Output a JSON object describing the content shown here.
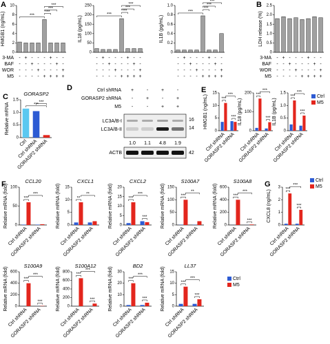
{
  "chart_data": [
    {
      "type": "bar",
      "panel": "A",
      "ylabel": "HMGB1 (ng/mL)",
      "values": [
        2.2,
        2,
        2,
        2,
        7,
        2,
        2,
        2
      ],
      "color": "#a0a0a0",
      "ylim": [
        0,
        10
      ],
      "yticks": [
        0,
        2,
        4,
        6,
        8,
        10
      ],
      "annotations": [
        "***",
        "***",
        "***",
        "***"
      ],
      "conditions": [
        {
          "name": "3-MA",
          "signs": [
            "-",
            "+",
            "-",
            "-",
            "-",
            "+",
            "-",
            "-"
          ]
        },
        {
          "name": "BAF",
          "signs": [
            "-",
            "-",
            "+",
            "-",
            "-",
            "-",
            "+",
            "-"
          ]
        },
        {
          "name": "WOR",
          "signs": [
            "-",
            "-",
            "-",
            "+",
            "-",
            "-",
            "-",
            "+"
          ]
        },
        {
          "name": "M5",
          "signs": [
            "-",
            "-",
            "-",
            "-",
            "+",
            "+",
            "+",
            "+"
          ]
        }
      ]
    },
    {
      "type": "bar",
      "ylabel": "IL18 (pg/mL)",
      "values": [
        20,
        15,
        15,
        15,
        180,
        20,
        20,
        20
      ],
      "color": "#a0a0a0",
      "ylim": [
        0,
        250
      ],
      "yticks": [
        0,
        50,
        100,
        150,
        200,
        250
      ],
      "annotations": [
        "***",
        "***",
        "***",
        "***"
      ],
      "conditions": [
        {
          "signs": [
            "-",
            "+",
            "-",
            "-",
            "-",
            "+",
            "-",
            "-"
          ]
        },
        {
          "signs": [
            "-",
            "-",
            "+",
            "-",
            "-",
            "-",
            "+",
            "-"
          ]
        },
        {
          "signs": [
            "-",
            "-",
            "-",
            "+",
            "-",
            "-",
            "-",
            "+"
          ]
        },
        {
          "signs": [
            "-",
            "-",
            "-",
            "-",
            "+",
            "+",
            "+",
            "+"
          ]
        }
      ]
    },
    {
      "type": "bar",
      "ylabel": "IL1B (pg/mL)",
      "values": [
        0.05,
        0.05,
        0.05,
        0.05,
        0.78,
        0.05,
        0.05,
        0.4
      ],
      "color": "#a0a0a0",
      "ylim": [
        0,
        1
      ],
      "yticks": [
        0,
        0.2,
        0.4,
        0.6,
        0.8,
        {
          "value": 1,
          "label": "1.0"
        }
      ],
      "annotations": [
        "***",
        "***",
        "***",
        "***"
      ],
      "conditions": [
        {
          "signs": [
            "-",
            "+",
            "-",
            "-",
            "-",
            "+",
            "-",
            "-"
          ]
        },
        {
          "signs": [
            "-",
            "-",
            "+",
            "-",
            "-",
            "-",
            "+",
            "-"
          ]
        },
        {
          "signs": [
            "-",
            "-",
            "-",
            "+",
            "-",
            "-",
            "-",
            "+"
          ]
        },
        {
          "signs": [
            "-",
            "-",
            "-",
            "-",
            "+",
            "+",
            "+",
            "+"
          ]
        }
      ]
    },
    {
      "type": "bar",
      "panel": "B",
      "ylabel": "LDH release (%)",
      "values": [
        1.8,
        1.9,
        1.8,
        1.85,
        1.75,
        1.8,
        1.9,
        1.85
      ],
      "color": "#a0a0a0",
      "ylim": [
        0,
        2.5
      ],
      "yticks": [
        0,
        0.5,
        {
          "value": 1,
          "label": "1.0"
        },
        1.5,
        {
          "value": 2,
          "label": "2.0"
        },
        2.5
      ],
      "conditions": [
        {
          "name": "3-MA",
          "signs": [
            "-",
            "+",
            "-",
            "-",
            "-",
            "+",
            "-",
            "-"
          ]
        },
        {
          "name": "BAF",
          "signs": [
            "-",
            "-",
            "+",
            "-",
            "-",
            "-",
            "+",
            "-"
          ]
        },
        {
          "name": "WOR",
          "signs": [
            "-",
            "-",
            "-",
            "+",
            "-",
            "-",
            "-",
            "+"
          ]
        },
        {
          "name": "M5",
          "signs": [
            "-",
            "-",
            "-",
            "-",
            "+",
            "+",
            "+",
            "+"
          ]
        }
      ]
    },
    {
      "type": "bar",
      "panel": "C",
      "title": "GORASP2",
      "ylabel": "Relative mRNA",
      "categories": [
        "Ctrl",
        "Ctrl shRNA",
        "GORASP2 shRNA"
      ],
      "values": [
        1.15,
        1.05,
        0.1
      ],
      "colors": [
        "#5bc8f0",
        "#2d5bd3",
        "#e3261d"
      ],
      "ylim": [
        0,
        1.5
      ],
      "yticks": [
        0,
        0.5,
        {
          "value": 1,
          "label": "1.0"
        },
        1.5
      ],
      "annotations": [
        "***",
        "***"
      ]
    },
    {
      "type": "grouped",
      "panel": "E",
      "ylabel": "HMGB1 (ng/mL)",
      "categories": [
        "Ctrl shRNA",
        "GORASP2 shRNA"
      ],
      "series": [
        {
          "name": "Ctrl",
          "color": "#2d5bd3",
          "values": [
            3.5,
            3.8
          ]
        },
        {
          "name": "M5",
          "color": "#e3261d",
          "values": [
            11,
            3.5
          ]
        }
      ],
      "ylim": [
        0,
        15
      ],
      "yticks": [
        0,
        5,
        10,
        15
      ],
      "annotations": [
        "***",
        "***",
        "***"
      ]
    },
    {
      "type": "grouped",
      "ylabel": "IL18 (pg/mL)",
      "categories": [
        "Ctrl shRNA",
        "GORASP2 shRNA"
      ],
      "series": [
        {
          "name": "Ctrl",
          "color": "#2d5bd3",
          "values": [
            15,
            12
          ]
        },
        {
          "name": "M5",
          "color": "#e3261d",
          "values": [
            170,
            45
          ]
        }
      ],
      "ylim": [
        0,
        200
      ],
      "yticks": [
        0,
        100,
        200
      ],
      "annotations": [
        "***",
        "***",
        "***"
      ]
    },
    {
      "type": "grouped",
      "ylabel": "IL1B (pg/mL)",
      "categories": [
        "Ctrl shRNA",
        "GORASP2 shRNA"
      ],
      "series": [
        {
          "name": "Ctrl",
          "color": "#2d5bd3",
          "values": [
            0.25,
            0.2
          ]
        },
        {
          "name": "M5",
          "color": "#e3261d",
          "values": [
            1.2,
            0.6
          ]
        }
      ],
      "ylim": [
        0,
        1.5
      ],
      "yticks": [
        0,
        0.5,
        {
          "value": 1,
          "label": "1.0"
        },
        1.5
      ],
      "annotations": [
        "***",
        "***",
        "***"
      ],
      "legend": "right"
    },
    {
      "type": "grouped",
      "panel": "F",
      "title": "CCL20",
      "ylabel": "Relative mRNA (fold)",
      "categories": [
        "Ctrl shRNA",
        "GORASP2 shRNA"
      ],
      "series": [
        {
          "name": "Ctrl",
          "color": "#2d5bd3",
          "values": [
            1,
            1
          ]
        },
        {
          "name": "M5",
          "color": "#e3261d",
          "values": [
            60,
            2
          ]
        }
      ],
      "ylim": [
        0,
        100
      ],
      "yticks": [
        0,
        50,
        100
      ],
      "annotations": [
        "***",
        "***"
      ]
    },
    {
      "type": "grouped",
      "title": "CXCL1",
      "ylabel": "Relative mRNA (fold)",
      "categories": [
        "Ctrl shRNA",
        "GORASP2 shRNA"
      ],
      "series": [
        {
          "name": "Ctrl",
          "color": "#2d5bd3",
          "values": [
            1,
            1
          ]
        },
        {
          "name": "M5",
          "color": "#e3261d",
          "values": [
            9,
            1.5
          ]
        }
      ],
      "ylim": [
        0,
        15
      ],
      "yticks": [
        0,
        5,
        10,
        15
      ],
      "annotations": [
        "**",
        "**"
      ]
    },
    {
      "type": "grouped",
      "title": "CXCL2",
      "ylabel": "Relative mRNA (fold)",
      "categories": [
        "Ctrl shRNA",
        "GORASP2 shRNA"
      ],
      "series": [
        {
          "name": "Ctrl",
          "color": "#2d5bd3",
          "values": [
            1,
            2
          ]
        },
        {
          "name": "M5",
          "color": "#e3261d",
          "values": [
            12,
            1.5
          ]
        }
      ],
      "ylim": [
        0,
        20
      ],
      "yticks": [
        0,
        5,
        10,
        15,
        20
      ],
      "annotations": [
        "***",
        "***",
        "***"
      ]
    },
    {
      "type": "grouped",
      "title": "S100A7",
      "ylabel": "Relative mRNA (fold)",
      "categories": [
        "Ctrl shRNA",
        "GORASP2 shRNA"
      ],
      "series": [
        {
          "name": "Ctrl",
          "color": "#2d5bd3",
          "values": [
            1,
            1
          ]
        },
        {
          "name": "M5",
          "color": "#e3261d",
          "values": [
            100,
            15
          ]
        }
      ],
      "ylim": [
        0,
        150
      ],
      "yticks": [
        0,
        50,
        100,
        150
      ],
      "annotations": [
        "***",
        "**"
      ]
    },
    {
      "type": "grouped",
      "title": "S100A8",
      "ylabel": "Relative mRNA (fold)",
      "categories": [
        "Ctrl shRNA",
        "GORASP2 shRNA"
      ],
      "series": [
        {
          "name": "Ctrl",
          "color": "#2d5bd3",
          "values": [
            1,
            1
          ]
        },
        {
          "name": "M5",
          "color": "#e3261d",
          "values": [
            400,
            8
          ]
        }
      ],
      "ylim": [
        0,
        600
      ],
      "yticks": [
        0,
        200,
        400,
        600
      ],
      "annotations": [
        "***",
        "***",
        "***"
      ]
    },
    {
      "type": "grouped",
      "panel": "G",
      "ylabel": "CXCL8 (ng/mL)",
      "categories": [
        "Ctrl shRNA",
        "GORASP2 shRNA"
      ],
      "series": [
        {
          "name": "Ctrl",
          "color": "#2d5bd3",
          "values": [
            0.1,
            0.1
          ]
        },
        {
          "name": "M5",
          "color": "#e3261d",
          "values": [
            2.5,
            1.2
          ]
        }
      ],
      "ylim": [
        0,
        3
      ],
      "yticks": [
        0,
        1,
        2,
        3
      ],
      "annotations": [
        "***",
        "***",
        "***"
      ],
      "legend": "right"
    },
    {
      "type": "grouped",
      "title": "S100A9",
      "ylabel": "Relative mRNA (fold)",
      "categories": [
        "Ctrl shRNA",
        "GORASP2 shRNA"
      ],
      "series": [
        {
          "name": "Ctrl",
          "color": "#2d5bd3",
          "values": [
            1,
            1
          ]
        },
        {
          "name": "M5",
          "color": "#e3261d",
          "values": [
            400,
            5
          ]
        }
      ],
      "ylim": [
        0,
        600
      ],
      "yticks": [
        0,
        200,
        400,
        600
      ],
      "annotations": [
        "***",
        "***",
        "***"
      ]
    },
    {
      "type": "grouped",
      "title": "S100A12",
      "ylabel": "Relative mRNA (fold)",
      "categories": [
        "Ctrl shRNA",
        "GORASP2 shRNA"
      ],
      "series": [
        {
          "name": "Ctrl",
          "color": "#2d5bd3",
          "values": [
            1,
            1
          ]
        },
        {
          "name": "M5",
          "color": "#e3261d",
          "values": [
            650,
            60
          ]
        }
      ],
      "ylim": [
        0,
        800
      ],
      "yticks": [
        0,
        200,
        400,
        600,
        800
      ],
      "annotations": [
        "***",
        "***",
        "***"
      ]
    },
    {
      "type": "grouped",
      "title": "BD2",
      "ylabel": "Relative mRNA (fold)",
      "categories": [
        "Ctrl shRNA",
        "GORASP2 shRNA"
      ],
      "series": [
        {
          "name": "Ctrl",
          "color": "#2d5bd3",
          "values": [
            1,
            1
          ]
        },
        {
          "name": "M5",
          "color": "#e3261d",
          "values": [
            20,
            3
          ]
        }
      ],
      "ylim": [
        0,
        30
      ],
      "yticks": [
        0,
        10,
        20,
        30
      ],
      "annotations": [
        "***",
        "***",
        "***"
      ]
    },
    {
      "type": "grouped",
      "title": "LL37",
      "ylabel": "Relative mRNA (fold)",
      "categories": [
        "Ctrl shRNA",
        "GORASP2 shRNA"
      ],
      "series": [
        {
          "name": "Ctrl",
          "color": "#2d5bd3",
          "values": [
            1,
            1
          ]
        },
        {
          "name": "M5",
          "color": "#e3261d",
          "values": [
            8.5,
            3
          ]
        }
      ],
      "ylim": [
        0,
        15
      ],
      "yticks": [
        0,
        5,
        10,
        15
      ],
      "annotations": [
        "***",
        "***",
        "***"
      ],
      "legend": "right"
    }
  ],
  "blot": {
    "panel": "D",
    "rows": [
      {
        "label": "Ctrl shRNA",
        "signs": [
          "+",
          "-",
          "+",
          "-"
        ]
      },
      {
        "label": "GORASP2 shRNA",
        "signs": [
          "-",
          "+",
          "-",
          "+"
        ]
      },
      {
        "label": "M5",
        "signs": [
          "-",
          "-",
          "+",
          "+"
        ]
      }
    ],
    "bands": [
      "LC3A/B-I",
      "LC3A/B-II"
    ],
    "markers": [
      "16",
      "14"
    ],
    "ratios": [
      "1.0",
      "1.1",
      "4.8",
      "1.9"
    ],
    "loading": "ACTB",
    "loading_marker": "42"
  }
}
